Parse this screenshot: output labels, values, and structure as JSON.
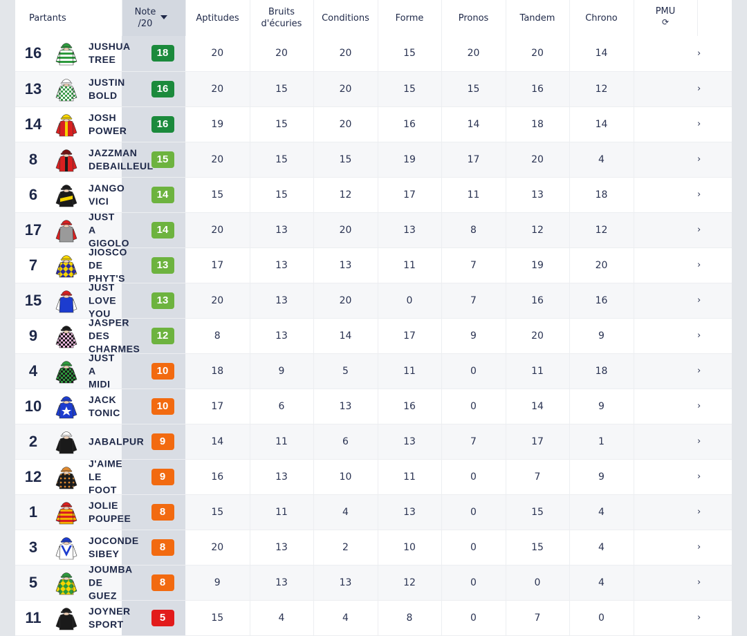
{
  "header": {
    "partants": "Partants",
    "note_line1": "Note",
    "note_line2": "/20",
    "aptitudes": "Aptitudes",
    "bruits_line1": "Bruits",
    "bruits_line2": "d'écuries",
    "conditions": "Conditions",
    "forme": "Forme",
    "pronos": "Pronos",
    "tandem": "Tandem",
    "chrono": "Chrono",
    "pmu": "PMU",
    "refresh_icon": "⟳"
  },
  "badge_colors": {
    "dark_green": "#1b8a3c",
    "light_green": "#6db33f",
    "orange": "#f26a10",
    "red": "#e21b1b"
  },
  "rows": [
    {
      "num": "16",
      "name": "JUSHUA TREE",
      "note": "18",
      "note_color": "#1b8a3c",
      "apt": "20",
      "bruits": "20",
      "cond": "20",
      "forme": "15",
      "pronos": "20",
      "tandem": "20",
      "chrono": "14",
      "silk": {
        "body": "#2d9a3d",
        "stripe": "#ffffff",
        "cap": "#2d9a3d",
        "pattern": "hoops"
      }
    },
    {
      "num": "13",
      "name": "JUSTIN BOLD",
      "note": "16",
      "note_color": "#1b8a3c",
      "apt": "20",
      "bruits": "15",
      "cond": "20",
      "forme": "15",
      "pronos": "15",
      "tandem": "16",
      "chrono": "12",
      "silk": {
        "body": "#ffffff",
        "stripe": "#3a9a4a",
        "cap": "#ffffff",
        "pattern": "check"
      }
    },
    {
      "num": "14",
      "name": "JOSH POWER",
      "note": "16",
      "note_color": "#1b8a3c",
      "apt": "19",
      "bruits": "15",
      "cond": "20",
      "forme": "16",
      "pronos": "14",
      "tandem": "18",
      "chrono": "14",
      "silk": {
        "body": "#d92020",
        "stripe": "#f5d400",
        "cap": "#f5d400",
        "pattern": "vstripe"
      }
    },
    {
      "num": "8",
      "name": "JAZZMAN DEBAILLEUL",
      "note": "15",
      "note_color": "#6db33f",
      "apt": "20",
      "bruits": "15",
      "cond": "15",
      "forme": "19",
      "pronos": "17",
      "tandem": "20",
      "chrono": "4",
      "silk": {
        "body": "#d92020",
        "stripe": "#1a1a1a",
        "cap": "#7a1010",
        "pattern": "vstripe"
      }
    },
    {
      "num": "6",
      "name": "JANGO VICI",
      "note": "14",
      "note_color": "#6db33f",
      "apt": "15",
      "bruits": "15",
      "cond": "12",
      "forme": "17",
      "pronos": "11",
      "tandem": "13",
      "chrono": "18",
      "silk": {
        "body": "#1a1a1a",
        "stripe": "#f5d400",
        "cap": "#1a1a1a",
        "pattern": "sash"
      }
    },
    {
      "num": "17",
      "name": "JUST A GIGOLO",
      "note": "14",
      "note_color": "#6db33f",
      "apt": "20",
      "bruits": "13",
      "cond": "20",
      "forme": "13",
      "pronos": "8",
      "tandem": "12",
      "chrono": "12",
      "silk": {
        "body": "#9a9a9a",
        "stripe": "#d92020",
        "cap": "#d92020",
        "pattern": "sleeves"
      }
    },
    {
      "num": "7",
      "name": "JIOSCO DE PHYT'S",
      "note": "13",
      "note_color": "#6db33f",
      "apt": "17",
      "bruits": "13",
      "cond": "13",
      "forme": "11",
      "pronos": "7",
      "tandem": "19",
      "chrono": "20",
      "silk": {
        "body": "#f5d400",
        "stripe": "#2a2aa0",
        "cap": "#f5d400",
        "pattern": "diamonds"
      }
    },
    {
      "num": "15",
      "name": "JUST LOVE YOU",
      "note": "13",
      "note_color": "#6db33f",
      "apt": "20",
      "bruits": "13",
      "cond": "20",
      "forme": "0",
      "pronos": "7",
      "tandem": "16",
      "chrono": "16",
      "silk": {
        "body": "#1c3ccf",
        "stripe": "#ffffff",
        "cap": "#d92020",
        "pattern": "sleeves"
      }
    },
    {
      "num": "9",
      "name": "JASPER DES CHARMES",
      "note": "12",
      "note_color": "#6db33f",
      "apt": "8",
      "bruits": "13",
      "cond": "14",
      "forme": "17",
      "pronos": "9",
      "tandem": "20",
      "chrono": "9",
      "silk": {
        "body": "#f2b8e0",
        "stripe": "#1a1a1a",
        "cap": "#1a1a1a",
        "pattern": "check"
      }
    },
    {
      "num": "4",
      "name": "JUST A MIDI",
      "note": "10",
      "note_color": "#f26a10",
      "apt": "18",
      "bruits": "9",
      "cond": "5",
      "forme": "11",
      "pronos": "0",
      "tandem": "11",
      "chrono": "18",
      "silk": {
        "body": "#1a1a1a",
        "stripe": "#2d9a3d",
        "cap": "#2d9a3d",
        "pattern": "check"
      }
    },
    {
      "num": "10",
      "name": "JACK TONIC",
      "note": "10",
      "note_color": "#f26a10",
      "apt": "17",
      "bruits": "6",
      "cond": "13",
      "forme": "16",
      "pronos": "0",
      "tandem": "14",
      "chrono": "9",
      "silk": {
        "body": "#1c3ccf",
        "stripe": "#ffffff",
        "cap": "#1c3ccf",
        "pattern": "star"
      }
    },
    {
      "num": "2",
      "name": "JABALPUR",
      "note": "9",
      "note_color": "#f26a10",
      "apt": "14",
      "bruits": "11",
      "cond": "6",
      "forme": "13",
      "pronos": "7",
      "tandem": "17",
      "chrono": "1",
      "silk": {
        "body": "#1a1a1a",
        "stripe": "#1a1a1a",
        "cap": "#ffffff",
        "pattern": "plain"
      }
    },
    {
      "num": "12",
      "name": "J'AIME LE FOOT",
      "note": "9",
      "note_color": "#f26a10",
      "apt": "16",
      "bruits": "13",
      "cond": "10",
      "forme": "11",
      "pronos": "0",
      "tandem": "7",
      "chrono": "9",
      "silk": {
        "body": "#1a1a1a",
        "stripe": "#e08a30",
        "cap": "#e08a30",
        "pattern": "spots"
      }
    },
    {
      "num": "1",
      "name": "JOLIE POUPEE",
      "note": "8",
      "note_color": "#f26a10",
      "apt": "15",
      "bruits": "11",
      "cond": "4",
      "forme": "13",
      "pronos": "0",
      "tandem": "15",
      "chrono": "4",
      "silk": {
        "body": "#d92020",
        "stripe": "#f5b000",
        "cap": "#d92020",
        "pattern": "hoops"
      }
    },
    {
      "num": "3",
      "name": "JOCONDE SIBEY",
      "note": "8",
      "note_color": "#f26a10",
      "apt": "20",
      "bruits": "13",
      "cond": "2",
      "forme": "10",
      "pronos": "0",
      "tandem": "15",
      "chrono": "4",
      "silk": {
        "body": "#ffffff",
        "stripe": "#1c3ccf",
        "cap": "#1c3ccf",
        "pattern": "chevron"
      }
    },
    {
      "num": "5",
      "name": "JOUMBA DE GUEZ",
      "note": "8",
      "note_color": "#f26a10",
      "apt": "9",
      "bruits": "13",
      "cond": "13",
      "forme": "12",
      "pronos": "0",
      "tandem": "0",
      "chrono": "4",
      "silk": {
        "body": "#2d9a3d",
        "stripe": "#f5d400",
        "cap": "#2d9a3d",
        "pattern": "diamonds"
      }
    },
    {
      "num": "11",
      "name": "JOYNER SPORT",
      "note": "5",
      "note_color": "#e21b1b",
      "apt": "15",
      "bruits": "4",
      "cond": "4",
      "forme": "8",
      "pronos": "0",
      "tandem": "7",
      "chrono": "0",
      "silk": {
        "body": "#1a1a1a",
        "stripe": "#1a1a1a",
        "cap": "#1a1a1a",
        "pattern": "plain"
      }
    }
  ],
  "row_arrow": "›"
}
